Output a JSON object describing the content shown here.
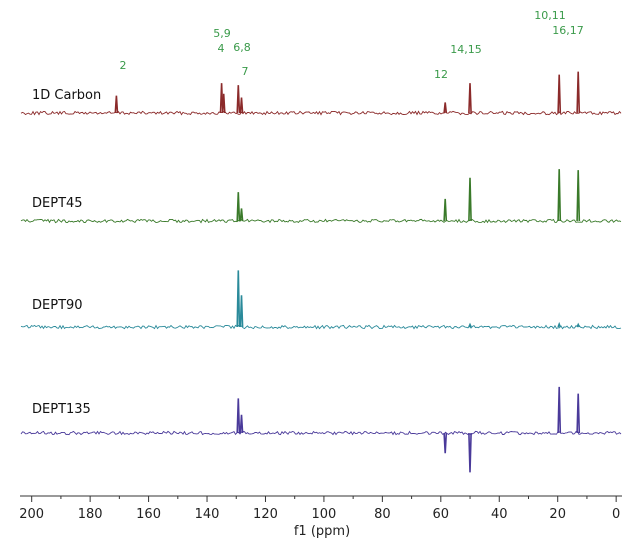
{
  "chart_data": {
    "type": "line",
    "xlabel": "f1 (ppm)",
    "xlim": [
      204,
      -2
    ],
    "x_reversed": true,
    "x_ticks": [
      200,
      180,
      160,
      140,
      120,
      100,
      80,
      60,
      40,
      20,
      0
    ],
    "grid": false,
    "peak_label_color": "#3a9a4a",
    "series": [
      {
        "name": "1D Carbon",
        "color": "#8b2a2a",
        "peaks": [
          {
            "ppm": 171,
            "intensity": 0.36
          },
          {
            "ppm": 135,
            "intensity": 0.62
          },
          {
            "ppm": 134.3,
            "intensity": 0.4
          },
          {
            "ppm": 129.3,
            "intensity": 0.58
          },
          {
            "ppm": 128.2,
            "intensity": 0.32
          },
          {
            "ppm": 58.5,
            "intensity": 0.22
          },
          {
            "ppm": 50,
            "intensity": 0.62
          },
          {
            "ppm": 19.5,
            "intensity": 0.8
          },
          {
            "ppm": 13,
            "intensity": 0.86
          }
        ]
      },
      {
        "name": "DEPT45",
        "color": "#3a7a2a",
        "peaks": [
          {
            "ppm": 129.3,
            "intensity": 0.6
          },
          {
            "ppm": 128.2,
            "intensity": 0.26
          },
          {
            "ppm": 58.5,
            "intensity": 0.46
          },
          {
            "ppm": 50,
            "intensity": 0.9
          },
          {
            "ppm": 19.5,
            "intensity": 1.08
          },
          {
            "ppm": 13,
            "intensity": 1.06
          }
        ]
      },
      {
        "name": "DEPT90",
        "color": "#2a8a9a",
        "peaks": [
          {
            "ppm": 129.3,
            "intensity": 1.18
          },
          {
            "ppm": 128.2,
            "intensity": 0.66
          },
          {
            "ppm": 50,
            "intensity": 0.05
          },
          {
            "ppm": 19.5,
            "intensity": 0.06
          },
          {
            "ppm": 13,
            "intensity": 0.05
          }
        ]
      },
      {
        "name": "DEPT135",
        "color": "#4a3a9a",
        "peaks": [
          {
            "ppm": 129.3,
            "intensity": 0.72
          },
          {
            "ppm": 128.2,
            "intensity": 0.38
          },
          {
            "ppm": 58.5,
            "intensity": -0.42
          },
          {
            "ppm": 50,
            "intensity": -0.82
          },
          {
            "ppm": 19.5,
            "intensity": 0.96
          },
          {
            "ppm": 13,
            "intensity": 0.82
          }
        ]
      }
    ],
    "peak_labels": [
      {
        "text": "2",
        "ppm": 171
      },
      {
        "text": "5,9",
        "ppm": 137
      },
      {
        "text": "4",
        "ppm": 136
      },
      {
        "text": "6,8",
        "ppm": 128
      },
      {
        "text": "7",
        "ppm": 128
      },
      {
        "text": "12",
        "ppm": 59
      },
      {
        "text": "14,15",
        "ppm": 47
      },
      {
        "text": "10,11",
        "ppm": 20
      },
      {
        "text": "16,17",
        "ppm": 13
      }
    ]
  }
}
